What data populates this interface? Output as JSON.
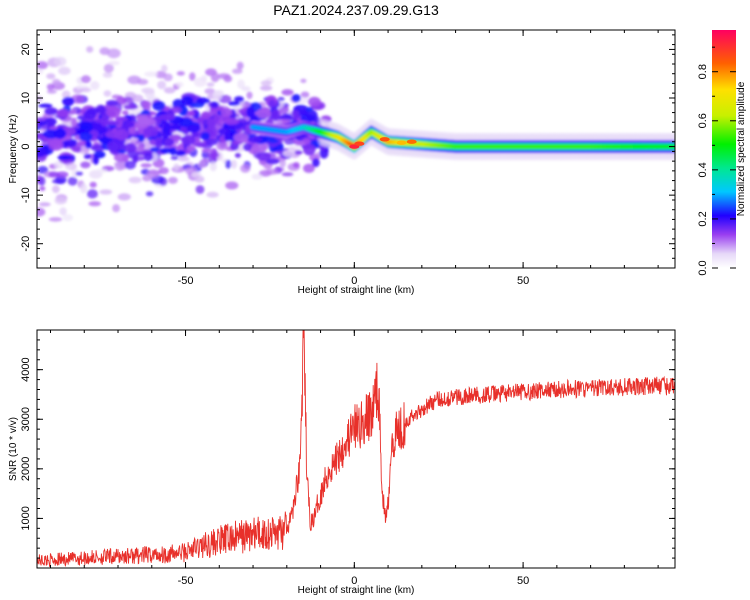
{
  "title": "PAZ1.2024.237.09.29.G13",
  "chart_data": [
    {
      "type": "heatmap",
      "xlabel": "Height of straight line (km)",
      "ylabel": "Frequency (Hz)",
      "xlim": [
        -94,
        95
      ],
      "ylim": [
        -25,
        24
      ],
      "xticks": [
        -50,
        0,
        50
      ],
      "yticks": [
        -20,
        -10,
        0,
        10,
        20
      ],
      "colorbar": {
        "label": "Normalized spectral amplitude",
        "range": [
          0,
          0.97
        ],
        "ticks": [
          0.0,
          0.2,
          0.4,
          0.6,
          0.8
        ]
      },
      "ridge": {
        "description_points_x": [
          -94,
          -80,
          -60,
          -50,
          -40,
          -30,
          -20,
          -15,
          -10,
          -5,
          0,
          5,
          10,
          20,
          30,
          50,
          70,
          95
        ],
        "frequency_hz": [
          2,
          3,
          3,
          4,
          4,
          4,
          3,
          4,
          3,
          2,
          0,
          3,
          1,
          0.5,
          0,
          0,
          0,
          0
        ],
        "amplitude": [
          0.15,
          0.2,
          0.25,
          0.3,
          0.3,
          0.3,
          0.3,
          0.35,
          0.5,
          0.7,
          0.9,
          0.6,
          0.8,
          0.65,
          0.55,
          0.55,
          0.55,
          0.5
        ]
      }
    },
    {
      "type": "line",
      "xlabel": "Height of straight line (km)",
      "ylabel": "SNR (10 * v/v)",
      "xlim": [
        -94,
        95
      ],
      "ylim": [
        0,
        4800
      ],
      "xticks": [
        -50,
        0,
        50
      ],
      "yticks": [
        1000,
        2000,
        3000,
        4000
      ],
      "series": [
        {
          "color": "#e8302a",
          "x": [
            -94,
            -85,
            -75,
            -65,
            -55,
            -50,
            -45,
            -40,
            -35,
            -30,
            -25,
            -20,
            -18,
            -16,
            -15,
            -14.5,
            -14,
            -13,
            -12,
            -10,
            -8,
            -6,
            -4,
            -2,
            0,
            2,
            4,
            6,
            7,
            8,
            9,
            10,
            11,
            12,
            14,
            16,
            18,
            20,
            22,
            25,
            30,
            35,
            40,
            50,
            60,
            70,
            80,
            90,
            95
          ],
          "y": [
            150,
            180,
            220,
            250,
            280,
            320,
            450,
            550,
            620,
            680,
            700,
            750,
            1200,
            2200,
            4600,
            3200,
            1800,
            900,
            1000,
            1500,
            1900,
            2100,
            2400,
            2600,
            2800,
            2900,
            3000,
            3300,
            3800,
            2000,
            1000,
            1300,
            2600,
            2700,
            2900,
            3000,
            3100,
            3200,
            3300,
            3400,
            3450,
            3480,
            3500,
            3550,
            3600,
            3620,
            3650,
            3680,
            3650
          ]
        }
      ]
    }
  ]
}
